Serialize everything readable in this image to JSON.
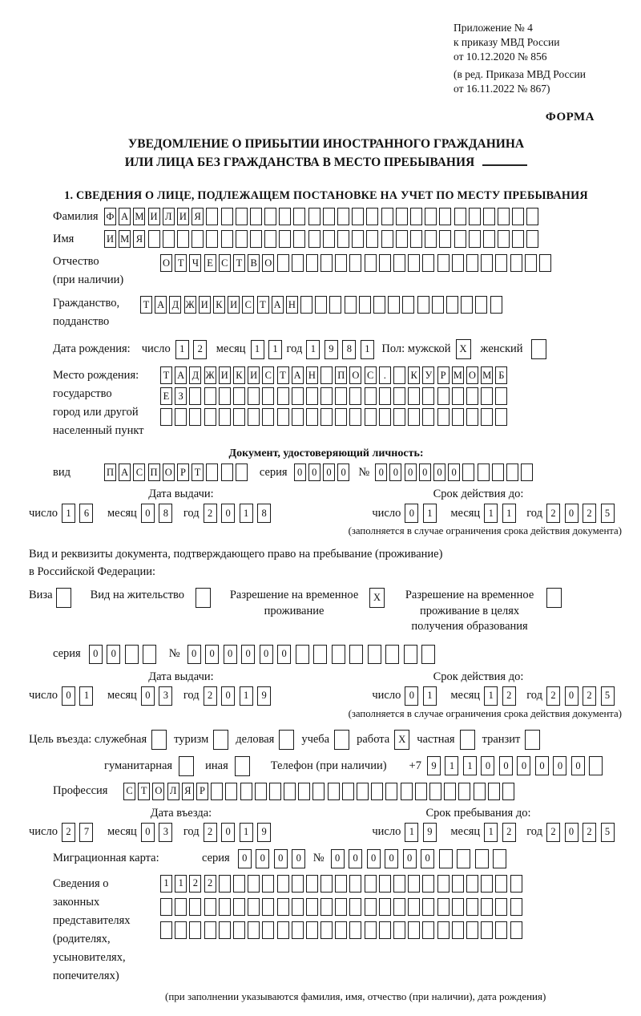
{
  "page": {
    "annex_lines": [
      "Приложение № 4",
      "к приказу МВД России",
      "от 10.12.2020 № 856"
    ],
    "annex_edit_lines": [
      "(в ред. Приказа МВД России",
      "от 16.11.2022 № 867)"
    ],
    "form_label": "ФОРМА",
    "title_line1": "УВЕДОМЛЕНИЕ О ПРИБЫТИИ ИНОСТРАННОГО ГРАЖДАНИНА",
    "title_line2": "ИЛИ ЛИЦА БЕЗ ГРАЖДАНСТВА В МЕСТО ПРЕБЫВАНИЯ",
    "section1_heading": "1. СВЕДЕНИЯ О ЛИЦЕ, ПОДЛЕЖАЩЕМ ПОСТАНОВКЕ НА УЧЕТ ПО МЕСТУ ПРЕБЫВАНИЯ"
  },
  "labels": {
    "surname": "Фамилия",
    "name": "Имя",
    "patronymic": "Отчество",
    "patronymic_note": "(при наличии)",
    "citizenship1": "Гражданство,",
    "citizenship2": "подданство",
    "birth_date": "Дата рождения:",
    "day": "число",
    "month": "месяц",
    "year": "год",
    "sex_male": "Пол: мужской",
    "sex_female": "женский",
    "birth_place": "Место рождения:",
    "state": "государство",
    "city1": "город или другой",
    "city2": "населенный пункт",
    "identity_doc": "Документ, удостоверяющий личность:",
    "kind": "вид",
    "series": "серия",
    "number": "№",
    "issue_date": "Дата выдачи:",
    "valid_until": "Срок действия до:",
    "valid_note": "(заполняется в случае ограничения срока действия документа)",
    "residence_doc1": "Вид и реквизиты документа, подтверждающего право на пребывание (проживание)",
    "residence_doc2": "в Российской Федерации:",
    "visa": "Виза",
    "residence_permit": "Вид на жительство",
    "temp_residence1": "Разрешение на временное",
    "temp_residence2": "проживание",
    "temp_edu1": "Разрешение на временное",
    "temp_edu2": "проживание в целях",
    "temp_edu3": "получения образования",
    "purpose": "Цель въезда: служебная",
    "tourism": "туризм",
    "business": "деловая",
    "study": "учеба",
    "work": "работа",
    "private": "частная",
    "transit": "транзит",
    "humanitarian": "гуманитарная",
    "other": "иная",
    "phone": "Телефон (при наличии)",
    "phone_prefix": "+7",
    "profession": "Профессия",
    "entry_date": "Дата въезда:",
    "stay_until": "Срок пребывания до:",
    "migration_card": "Миграционная карта:",
    "rep1": "Сведения о",
    "rep2": "законных",
    "rep3": "представителях",
    "rep4": "(родителях,",
    "rep5": "усыновителях,",
    "rep6": "попечителях)",
    "representatives_note": "(при заполнении указываются фамилия, имя, отчество (при наличии), дата рождения)"
  },
  "boxes": {
    "surname": {
      "n": 30,
      "v": "ФАМИЛИЯ"
    },
    "name": {
      "n": 30,
      "v": "ИМЯ"
    },
    "patronymic": {
      "n": 27,
      "v": "ОТЧЕСТВО"
    },
    "citizenship": {
      "n": 25,
      "v": "ТАДЖИКИСТАН"
    },
    "birth_day": {
      "n": 2,
      "v": "12"
    },
    "birth_month": {
      "n": 2,
      "v": "11"
    },
    "birth_year": {
      "n": 4,
      "v": "1981"
    },
    "sex_male": {
      "n": 1,
      "v": "X"
    },
    "sex_female": {
      "n": 1,
      "v": ""
    },
    "birth_place1": {
      "n": 24,
      "v": "ТАДЖИКИСТАН ПОС. КУРМОМБ"
    },
    "birth_place2": {
      "n": 24,
      "v": "ЕЗ"
    },
    "birth_place3": {
      "n": 24,
      "v": ""
    },
    "doc_kind": {
      "n": 10,
      "v": "ПАСПОРТ"
    },
    "doc_series": {
      "n": 4,
      "v": "0000"
    },
    "doc_number": {
      "n": 11,
      "v": "000000"
    },
    "doc_issue_day": {
      "n": 2,
      "v": "16"
    },
    "doc_issue_month": {
      "n": 2,
      "v": "08"
    },
    "doc_issue_year": {
      "n": 4,
      "v": "2018"
    },
    "doc_valid_day": {
      "n": 2,
      "v": "01"
    },
    "doc_valid_month": {
      "n": 2,
      "v": "11"
    },
    "doc_valid_year": {
      "n": 4,
      "v": "2025"
    },
    "cb_visa": {
      "n": 1,
      "v": ""
    },
    "cb_residence_permit": {
      "n": 1,
      "v": ""
    },
    "cb_temp_residence": {
      "n": 1,
      "v": "X"
    },
    "cb_temp_edu": {
      "n": 1,
      "v": ""
    },
    "permit_series": {
      "n": 4,
      "v": "00"
    },
    "permit_number": {
      "n": 14,
      "v": "000000"
    },
    "permit_issue_day": {
      "n": 2,
      "v": "01"
    },
    "permit_issue_month": {
      "n": 2,
      "v": "03"
    },
    "permit_issue_year": {
      "n": 4,
      "v": "2019"
    },
    "permit_valid_day": {
      "n": 2,
      "v": "01"
    },
    "permit_valid_month": {
      "n": 2,
      "v": "12"
    },
    "permit_valid_year": {
      "n": 4,
      "v": "2025"
    },
    "cb_official": {
      "n": 1,
      "v": ""
    },
    "cb_tourism": {
      "n": 1,
      "v": ""
    },
    "cb_business": {
      "n": 1,
      "v": ""
    },
    "cb_study": {
      "n": 1,
      "v": ""
    },
    "cb_work": {
      "n": 1,
      "v": "X"
    },
    "cb_private": {
      "n": 1,
      "v": ""
    },
    "cb_transit": {
      "n": 1,
      "v": ""
    },
    "cb_humanitarian": {
      "n": 1,
      "v": ""
    },
    "cb_other": {
      "n": 1,
      "v": ""
    },
    "phone": {
      "n": 10,
      "v": "911000000"
    },
    "profession": {
      "n": 27,
      "v": "СТОЛЯР"
    },
    "entry_day": {
      "n": 2,
      "v": "27"
    },
    "entry_month": {
      "n": 2,
      "v": "03"
    },
    "entry_year": {
      "n": 4,
      "v": "2019"
    },
    "stay_day": {
      "n": 2,
      "v": "19"
    },
    "stay_month": {
      "n": 2,
      "v": "12"
    },
    "stay_year": {
      "n": 4,
      "v": "2025"
    },
    "mig_series": {
      "n": 4,
      "v": "0000"
    },
    "mig_number": {
      "n": 10,
      "v": "000000"
    },
    "rep_row1": {
      "n": 25,
      "v": "1122"
    },
    "rep_row2": {
      "n": 25,
      "v": ""
    },
    "rep_row3": {
      "n": 25,
      "v": ""
    }
  }
}
